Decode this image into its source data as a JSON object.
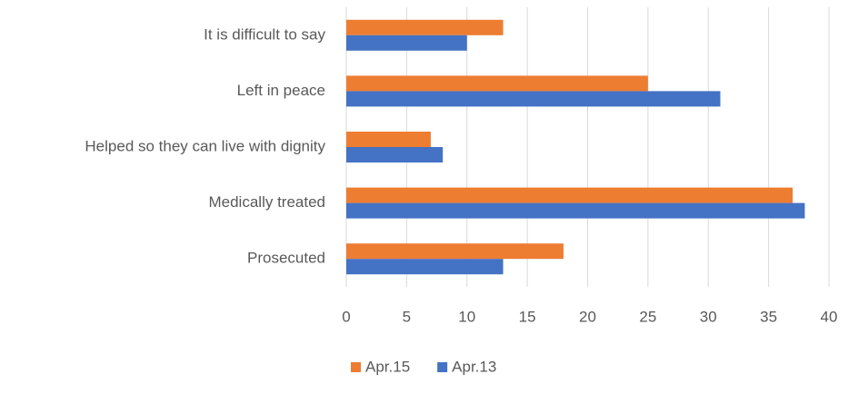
{
  "chart_data": {
    "type": "bar",
    "orientation": "horizontal",
    "categories": [
      "It is difficult to say",
      "Left in peace",
      "Helped so they can live with dignity",
      "Medically treated",
      "Prosecuted"
    ],
    "series": [
      {
        "name": "Apr.15",
        "color": "#ED7D31",
        "values": [
          13,
          25,
          7,
          37,
          18
        ]
      },
      {
        "name": "Apr.13",
        "color": "#4472C4",
        "values": [
          10,
          31,
          8,
          38,
          13
        ]
      }
    ],
    "xlim": [
      0,
      40
    ],
    "xticks": [
      0,
      5,
      10,
      15,
      20,
      25,
      30,
      35,
      40
    ],
    "grid": true,
    "legend": "bottom"
  }
}
